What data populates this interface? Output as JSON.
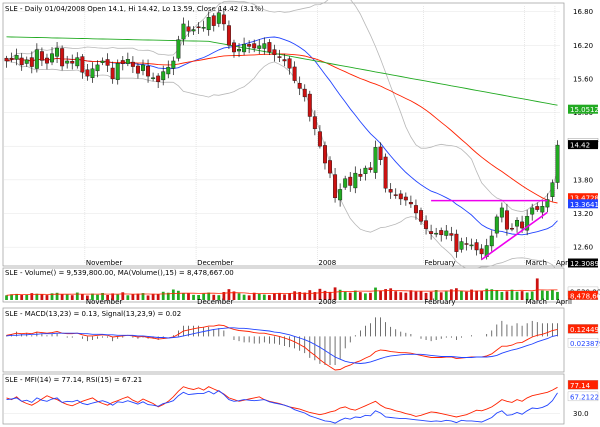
{
  "chart_data": [
    {
      "type": "candlestick",
      "title": "SLE - Daily 01/04/2008 Open 14.1, Hi 14.42, Lo 13.59, Close 14.42 (3.1%)",
      "y_ticks": [
        "16.80",
        "16.20",
        "15.60",
        "15.00",
        "14.40",
        "13.80",
        "13.20",
        "12.60"
      ],
      "x_labels": [
        "November",
        "December",
        "2008",
        "February",
        "March",
        "April"
      ],
      "ylim": [
        12.3,
        16.9
      ],
      "right_tags": [
        {
          "text": "15.0512",
          "value": 15.0512,
          "color": "#22aa22"
        },
        {
          "text": "14.4507",
          "value": 14.4507,
          "color": "#ffffff"
        },
        {
          "text": "14.42",
          "value": 14.42,
          "color": "#000000"
        },
        {
          "text": "13.4728",
          "value": 13.4728,
          "color": "#ff2200"
        },
        {
          "text": "13.3641",
          "value": 13.3641,
          "color": "#2244ff"
        },
        {
          "text": "12.3089",
          "value": 12.3089,
          "color": "#000000"
        }
      ],
      "close": [
        15.92,
        15.96,
        16.02,
        15.85,
        15.94,
        15.82,
        16.12,
        15.93,
        15.88,
        16.05,
        16.15,
        15.83,
        15.92,
        15.88,
        15.98,
        15.72,
        15.65,
        15.78,
        15.85,
        15.92,
        15.84,
        15.6,
        15.88,
        15.87,
        15.95,
        15.82,
        15.7,
        15.85,
        15.65,
        15.62,
        15.55,
        15.73,
        15.81,
        15.92,
        16.3,
        16.58,
        16.45,
        16.48,
        16.52,
        16.52,
        16.7,
        16.55,
        16.78,
        16.58,
        16.2,
        16.08,
        16.13,
        16.22,
        16.18,
        16.15,
        16.19,
        16.23,
        16.08,
        16.03,
        15.98,
        15.92,
        15.79,
        15.57,
        15.43,
        15.28,
        14.93,
        14.71,
        14.4,
        14.1,
        13.92,
        13.48,
        13.63,
        13.82,
        13.7,
        13.92,
        13.86,
        14.01,
        13.98,
        14.38,
        14.16,
        13.65,
        13.58,
        13.52,
        13.46,
        13.44,
        13.37,
        13.21,
        13.06,
        12.93,
        12.84,
        12.85,
        12.82,
        12.89,
        12.81,
        12.52,
        12.7,
        12.66,
        12.64,
        12.55,
        12.48,
        12.63,
        12.8,
        13.14,
        13.3,
        12.92,
        12.93,
        13.08,
        12.94,
        13.15,
        13.3,
        13.27,
        13.33,
        13.45,
        13.75,
        14.42
      ],
      "volume_label": "SLE - Volume() = 9,539,800.00, MA(Volume(),15) = 8,478,667.00",
      "volume_tags": [
        "9,539,800",
        "8,478,667"
      ],
      "volume_ylim": [
        0,
        26000000
      ],
      "volume": [
        5.5,
        6.8,
        7.2,
        5.9,
        6.3,
        8.1,
        7.4,
        6.6,
        5.8,
        7.9,
        8.5,
        7.1,
        6.4,
        5.7,
        8.8,
        6.9,
        5.3,
        7.6,
        6.2,
        8.3,
        5.9,
        7.8,
        6.4,
        9.1,
        5.6,
        6.9,
        7.5,
        8.2,
        5.4,
        7.3,
        6.8,
        9.7,
        8.6,
        12.4,
        10.9,
        8.3,
        7.7,
        6.1,
        5.9,
        7.5,
        8.8,
        6.2,
        5.7,
        9.4,
        12.8,
        10.1,
        7.9,
        6.3,
        5.5,
        8.6,
        7.2,
        6.4,
        5.8,
        7.9,
        8.4,
        6.6,
        7.7,
        10.3,
        9.5,
        8.8,
        11.6,
        9.4,
        13.2,
        10.8,
        9.6,
        14.9,
        12.1,
        9.9,
        8.7,
        11.2,
        9.3,
        7.8,
        8.5,
        14.7,
        11.3,
        12.9,
        13.8,
        10.4,
        9.2,
        8.6,
        11.5,
        9.9,
        10.7,
        8.4,
        9.6,
        11.8,
        9.1,
        10.2,
        12.6,
        13.9,
        10.8,
        9.7,
        12.3,
        11.1,
        10.6,
        13.4,
        12.7,
        11.8,
        9.5,
        10.3,
        12.2,
        9.8,
        10.5,
        8.9,
        9.9,
        25.5,
        11.2,
        10.7,
        12.4,
        9.54
      ],
      "macd_label": "SLE - MACD(13,23) = 0.13, Signal(13,23,9) = 0.02",
      "macd_tags": [
        {
          "text": "0.124494",
          "color": "#ff2200"
        },
        {
          "text": "0.023879",
          "color": "#2244ff"
        }
      ],
      "macd_ylim": [
        -0.62,
        0.34
      ],
      "macd": [
        0.02,
        0.04,
        0.06,
        0.05,
        0.06,
        0.05,
        0.08,
        0.07,
        0.06,
        0.07,
        0.09,
        0.06,
        0.05,
        0.05,
        0.06,
        0.03,
        0.01,
        0.01,
        0.02,
        0.03,
        0.02,
        -0.01,
        0.0,
        0.01,
        0.02,
        0.01,
        -0.01,
        0.0,
        -0.02,
        -0.03,
        -0.05,
        -0.04,
        -0.03,
        -0.01,
        0.04,
        0.1,
        0.12,
        0.14,
        0.16,
        0.17,
        0.19,
        0.19,
        0.21,
        0.2,
        0.16,
        0.13,
        0.11,
        0.1,
        0.09,
        0.07,
        0.06,
        0.06,
        0.04,
        0.02,
        0.0,
        -0.03,
        -0.06,
        -0.1,
        -0.15,
        -0.2,
        -0.28,
        -0.35,
        -0.43,
        -0.5,
        -0.56,
        -0.62,
        -0.61,
        -0.56,
        -0.53,
        -0.48,
        -0.45,
        -0.4,
        -0.36,
        -0.28,
        -0.25,
        -0.26,
        -0.28,
        -0.29,
        -0.3,
        -0.3,
        -0.31,
        -0.33,
        -0.35,
        -0.37,
        -0.39,
        -0.39,
        -0.39,
        -0.38,
        -0.38,
        -0.41,
        -0.4,
        -0.39,
        -0.38,
        -0.38,
        -0.38,
        -0.36,
        -0.32,
        -0.25,
        -0.18,
        -0.18,
        -0.16,
        -0.12,
        -0.11,
        -0.06,
        -0.01,
        0.02,
        0.04,
        0.07,
        0.11,
        0.13
      ],
      "signal": [
        0.01,
        0.02,
        0.02,
        0.03,
        0.03,
        0.04,
        0.04,
        0.05,
        0.05,
        0.05,
        0.06,
        0.06,
        0.06,
        0.06,
        0.06,
        0.05,
        0.05,
        0.04,
        0.04,
        0.04,
        0.03,
        0.03,
        0.02,
        0.02,
        0.02,
        0.02,
        0.01,
        0.01,
        0.0,
        -0.01,
        -0.02,
        -0.02,
        -0.03,
        -0.02,
        -0.01,
        0.01,
        0.03,
        0.05,
        0.07,
        0.09,
        0.11,
        0.13,
        0.14,
        0.15,
        0.16,
        0.16,
        0.15,
        0.15,
        0.14,
        0.13,
        0.12,
        0.11,
        0.1,
        0.08,
        0.07,
        0.05,
        0.03,
        0.0,
        -0.03,
        -0.06,
        -0.1,
        -0.15,
        -0.2,
        -0.26,
        -0.32,
        -0.38,
        -0.42,
        -0.46,
        -0.48,
        -0.49,
        -0.5,
        -0.49,
        -0.47,
        -0.44,
        -0.41,
        -0.38,
        -0.36,
        -0.35,
        -0.34,
        -0.33,
        -0.33,
        -0.33,
        -0.33,
        -0.34,
        -0.35,
        -0.36,
        -0.37,
        -0.37,
        -0.37,
        -0.38,
        -0.39,
        -0.39,
        -0.39,
        -0.38,
        -0.38,
        -0.38,
        -0.37,
        -0.35,
        -0.31,
        -0.28,
        -0.25,
        -0.23,
        -0.2,
        -0.17,
        -0.14,
        -0.1,
        -0.07,
        -0.04,
        0.0,
        0.02
      ],
      "oscillator_label": "SLE - MFI(14) = 77.14, RSI(15) = 67.21",
      "oscillator_tags": [
        {
          "text": "77.14",
          "color": "#ff2200"
        },
        {
          "text": "67.2122",
          "color": "#2244ff"
        }
      ],
      "oscillator_y_ticks": [
        "30.0"
      ],
      "oscillator_ylim": [
        15,
        90
      ],
      "mfi": [
        58,
        55,
        60,
        52,
        48,
        45,
        50,
        56,
        62,
        58,
        55,
        50,
        46,
        44,
        48,
        52,
        55,
        58,
        52,
        48,
        45,
        50,
        53,
        57,
        60,
        54,
        50,
        56,
        52,
        48,
        42,
        46,
        52,
        60,
        70,
        78,
        75,
        73,
        76,
        72,
        78,
        74,
        70,
        65,
        58,
        55,
        52,
        54,
        56,
        58,
        60,
        55,
        52,
        50,
        48,
        45,
        42,
        40,
        38,
        35,
        32,
        30,
        28,
        30,
        33,
        35,
        40,
        42,
        38,
        36,
        40,
        44,
        48,
        52,
        45,
        40,
        38,
        35,
        33,
        30,
        28,
        25,
        27,
        30,
        33,
        32,
        30,
        28,
        26,
        24,
        26,
        28,
        32,
        36,
        35,
        38,
        42,
        48,
        55,
        52,
        50,
        55,
        52,
        58,
        62,
        64,
        66,
        68,
        72,
        77
      ],
      "rsi": [
        55,
        56,
        58,
        52,
        54,
        50,
        58,
        54,
        52,
        56,
        58,
        50,
        52,
        51,
        54,
        48,
        46,
        49,
        51,
        53,
        50,
        45,
        51,
        50,
        53,
        50,
        47,
        51,
        46,
        45,
        43,
        48,
        50,
        53,
        62,
        68,
        64,
        65,
        66,
        66,
        70,
        65,
        71,
        64,
        55,
        52,
        53,
        55,
        54,
        53,
        54,
        55,
        51,
        49,
        47,
        45,
        42,
        37,
        34,
        31,
        26,
        23,
        20,
        17,
        16,
        13,
        18,
        22,
        20,
        24,
        23,
        27,
        26,
        35,
        31,
        24,
        23,
        22,
        21,
        21,
        20,
        19,
        18,
        17,
        16,
        17,
        16,
        18,
        17,
        14,
        18,
        17,
        17,
        16,
        15,
        19,
        23,
        31,
        35,
        27,
        28,
        32,
        29,
        35,
        40,
        39,
        41,
        45,
        53,
        67
      ]
    }
  ]
}
